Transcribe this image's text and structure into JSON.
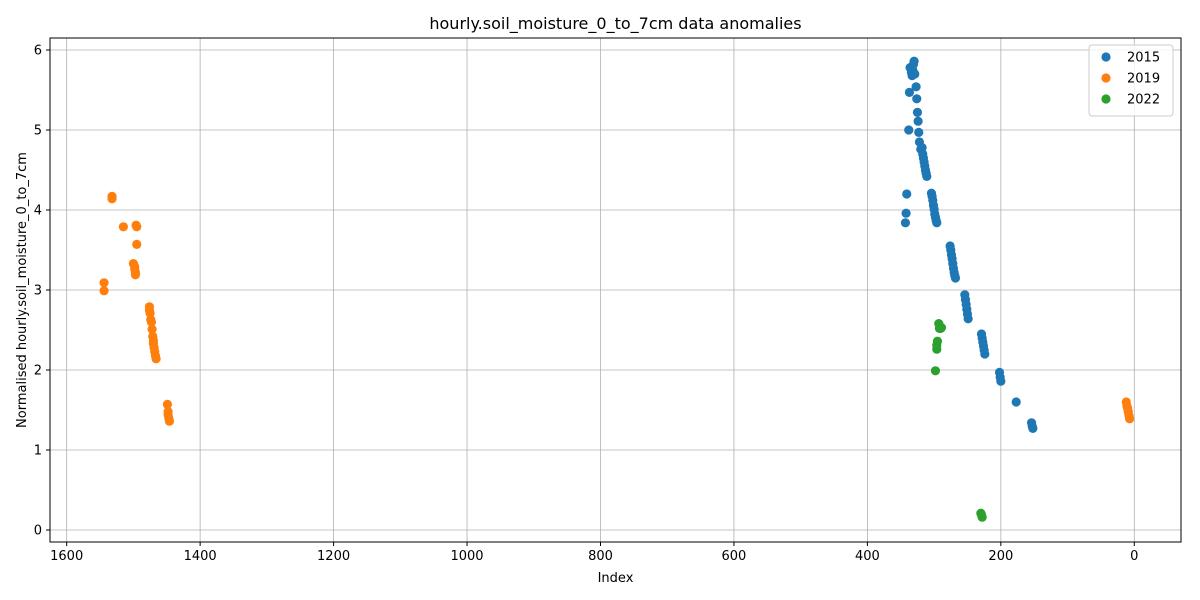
{
  "chart_data": {
    "type": "scatter",
    "title": "hourly.soil_moisture_0_to_7cm data anomalies",
    "xlabel": "Index",
    "ylabel": "Normalised hourly.soil_moisture_0_to_7cm",
    "x_inverted": true,
    "xlim": [
      1625,
      -70
    ],
    "ylim": [
      -0.15,
      6.15
    ],
    "xticks": [
      1600,
      1400,
      1200,
      1000,
      800,
      600,
      400,
      200,
      0
    ],
    "xtick_labels": [
      "1600",
      "1400",
      "1200",
      "1000",
      "800",
      "600",
      "400",
      "200",
      "0"
    ],
    "yticks": [
      0,
      1,
      2,
      3,
      4,
      5,
      6
    ],
    "ytick_labels": [
      "0",
      "1",
      "2",
      "3",
      "4",
      "5",
      "6"
    ],
    "grid": true,
    "legend_position": "top-right",
    "series": [
      {
        "name": "2015",
        "color": "#1f77b4",
        "points": [
          [
            343,
            3.84
          ],
          [
            342,
            3.96
          ],
          [
            341,
            4.2
          ],
          [
            338,
            5.0
          ],
          [
            337,
            5.47
          ],
          [
            336,
            5.78
          ],
          [
            334,
            5.72
          ],
          [
            333,
            5.68
          ],
          [
            332,
            5.75
          ],
          [
            331,
            5.82
          ],
          [
            330,
            5.86
          ],
          [
            329,
            5.7
          ],
          [
            327,
            5.54
          ],
          [
            326,
            5.39
          ],
          [
            325,
            5.22
          ],
          [
            324,
            5.11
          ],
          [
            323,
            4.97
          ],
          [
            322,
            4.85
          ],
          [
            320,
            4.76
          ],
          [
            318,
            4.78
          ],
          [
            317,
            4.7
          ],
          [
            316,
            4.65
          ],
          [
            315,
            4.6
          ],
          [
            314,
            4.55
          ],
          [
            313,
            4.5
          ],
          [
            312,
            4.46
          ],
          [
            311,
            4.42
          ],
          [
            304,
            4.21
          ],
          [
            303,
            4.17
          ],
          [
            302,
            4.12
          ],
          [
            301,
            4.06
          ],
          [
            300,
            4.01
          ],
          [
            299,
            3.95
          ],
          [
            298,
            3.91
          ],
          [
            297,
            3.87
          ],
          [
            296,
            3.84
          ],
          [
            276,
            3.55
          ],
          [
            275,
            3.5
          ],
          [
            274,
            3.44
          ],
          [
            273,
            3.39
          ],
          [
            272,
            3.33
          ],
          [
            271,
            3.27
          ],
          [
            270,
            3.22
          ],
          [
            269,
            3.18
          ],
          [
            268,
            3.15
          ],
          [
            254,
            2.94
          ],
          [
            253,
            2.88
          ],
          [
            252,
            2.82
          ],
          [
            251,
            2.76
          ],
          [
            250,
            2.7
          ],
          [
            249,
            2.64
          ],
          [
            229,
            2.45
          ],
          [
            228,
            2.4
          ],
          [
            227,
            2.35
          ],
          [
            226,
            2.3
          ],
          [
            225,
            2.25
          ],
          [
            224,
            2.2
          ],
          [
            202,
            1.97
          ],
          [
            201,
            1.91
          ],
          [
            200,
            1.86
          ],
          [
            177,
            1.6
          ],
          [
            154,
            1.34
          ],
          [
            153,
            1.3
          ],
          [
            152,
            1.27
          ]
        ]
      },
      {
        "name": "2019",
        "color": "#ff7f0e",
        "points": [
          [
            1544,
            3.09
          ],
          [
            1544,
            2.99
          ],
          [
            1532,
            4.17
          ],
          [
            1532,
            4.14
          ],
          [
            1515,
            3.79
          ],
          [
            1500,
            3.33
          ],
          [
            1498,
            3.29
          ],
          [
            1498,
            3.26
          ],
          [
            1497,
            3.22
          ],
          [
            1497,
            3.19
          ],
          [
            1496,
            3.81
          ],
          [
            1495,
            3.79
          ],
          [
            1495,
            3.57
          ],
          [
            1476,
            2.79
          ],
          [
            1476,
            2.75
          ],
          [
            1475,
            2.71
          ],
          [
            1474,
            2.63
          ],
          [
            1473,
            2.6
          ],
          [
            1472,
            2.51
          ],
          [
            1471,
            2.42
          ],
          [
            1470,
            2.37
          ],
          [
            1470,
            2.33
          ],
          [
            1469,
            2.28
          ],
          [
            1468,
            2.23
          ],
          [
            1467,
            2.18
          ],
          [
            1466,
            2.14
          ],
          [
            1449,
            1.57
          ],
          [
            1448,
            1.48
          ],
          [
            1448,
            1.44
          ],
          [
            1447,
            1.4
          ],
          [
            1446,
            1.36
          ],
          [
            12,
            1.6
          ],
          [
            11,
            1.55
          ],
          [
            10,
            1.52
          ],
          [
            9,
            1.48
          ],
          [
            8,
            1.43
          ],
          [
            7,
            1.39
          ]
        ]
      },
      {
        "name": "2022",
        "color": "#2ca02c",
        "points": [
          [
            298,
            1.99
          ],
          [
            296,
            2.26
          ],
          [
            296,
            2.31
          ],
          [
            295,
            2.36
          ],
          [
            293,
            2.58
          ],
          [
            292,
            2.52
          ],
          [
            290,
            2.52
          ],
          [
            289,
            2.53
          ],
          [
            230,
            0.21
          ],
          [
            229,
            0.19
          ],
          [
            228,
            0.16
          ]
        ]
      }
    ]
  }
}
